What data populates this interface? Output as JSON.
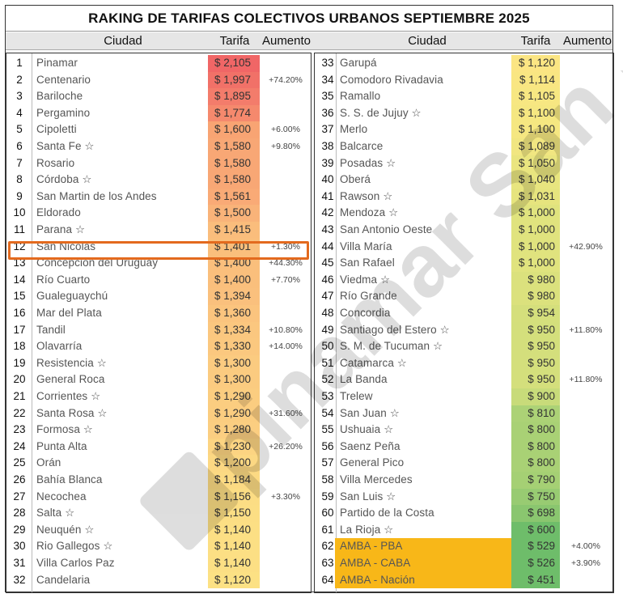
{
  "title": "RAKING DE TARIFAS COLECTIVOS URBANOS SEPTIEMBRE 2025",
  "headers": {
    "city": "Ciudad",
    "fare": "Tarifa",
    "increase": "Aumento"
  },
  "colors": {
    "highlight": "#e36a1e",
    "amba": "#f8b718",
    "high": "#f26b6b",
    "mid": "#fbd97a",
    "low": "#6fbf6c"
  },
  "watermark": {
    "text": "pinamar San Nicolas",
    "icon": "logo-icon"
  },
  "left_rows": [
    {
      "rank": "1",
      "city": "Pinamar",
      "fare": "$ 2,105",
      "inc": "",
      "c": "#f06666"
    },
    {
      "rank": "2",
      "city": "Centenario",
      "fare": "$ 1,997",
      "inc": "+74.20%",
      "c": "#f17168"
    },
    {
      "rank": "3",
      "city": "Bariloche",
      "fare": "$ 1,895",
      "inc": "",
      "c": "#f37c6b"
    },
    {
      "rank": "4",
      "city": "Pergamino",
      "fare": "$ 1,774",
      "inc": "",
      "c": "#f5896d"
    },
    {
      "rank": "5",
      "city": "Cipoletti",
      "fare": "$ 1,600",
      "inc": "+6.00%",
      "c": "#f8a473"
    },
    {
      "rank": "6",
      "city": "Santa Fe ☆",
      "fare": "$ 1,580",
      "inc": "+9.80%",
      "c": "#f8a775"
    },
    {
      "rank": "7",
      "city": "Rosario",
      "fare": "$ 1,580",
      "inc": "",
      "c": "#f8a775"
    },
    {
      "rank": "8",
      "city": "Córdoba ☆",
      "fare": "$ 1,580",
      "inc": "",
      "c": "#f8a775"
    },
    {
      "rank": "9",
      "city": "San Martin de los Andes",
      "fare": "$ 1,561",
      "inc": "",
      "c": "#f9aa76"
    },
    {
      "rank": "10",
      "city": "Eldorado",
      "fare": "$ 1,500",
      "inc": "",
      "c": "#f9b379"
    },
    {
      "rank": "11",
      "city": "Parana ☆",
      "fare": "$ 1,415",
      "inc": "",
      "c": "#fabd7c"
    },
    {
      "rank": "12",
      "city": "San Nicolas",
      "fare": "$ 1,401",
      "inc": "+1.30%",
      "c": "#fabf7c"
    },
    {
      "rank": "13",
      "city": "Concepción del Uruguay",
      "fare": "$ 1,400",
      "inc": "+44.30%",
      "c": "#fabf7c"
    },
    {
      "rank": "14",
      "city": "Río Cuarto",
      "fare": "$ 1,400",
      "inc": "+7.70%",
      "c": "#fabf7c"
    },
    {
      "rank": "15",
      "city": "Gualeguaychú",
      "fare": "$ 1,394",
      "inc": "",
      "c": "#fac07d"
    },
    {
      "rank": "16",
      "city": "Mar del Plata",
      "fare": "$ 1,360",
      "inc": "",
      "c": "#fbc47e"
    },
    {
      "rank": "17",
      "city": "Tandil",
      "fare": "$ 1,334",
      "inc": "+10.80%",
      "c": "#fbc77f"
    },
    {
      "rank": "18",
      "city": "Olavarría",
      "fare": "$ 1,330",
      "inc": "+14.00%",
      "c": "#fbc87f"
    },
    {
      "rank": "19",
      "city": "Resistencia ☆",
      "fare": "$ 1,300",
      "inc": "",
      "c": "#fbcb80"
    },
    {
      "rank": "20",
      "city": "General Roca",
      "fare": "$ 1,300",
      "inc": "",
      "c": "#fbcb80"
    },
    {
      "rank": "21",
      "city": "Corrientes ☆",
      "fare": "$ 1,290",
      "inc": "",
      "c": "#fbcd80"
    },
    {
      "rank": "22",
      "city": "Santa Rosa ☆",
      "fare": "$ 1,290",
      "inc": "+31.60%",
      "c": "#fbcd80"
    },
    {
      "rank": "23",
      "city": "Formosa ☆",
      "fare": "$ 1,280",
      "inc": "",
      "c": "#fbce81"
    },
    {
      "rank": "24",
      "city": "Punta Alta",
      "fare": "$ 1,230",
      "inc": "+26.20%",
      "c": "#fcd482"
    },
    {
      "rank": "25",
      "city": "Orán",
      "fare": "$ 1,200",
      "inc": "",
      "c": "#fcd883"
    },
    {
      "rank": "26",
      "city": "Bahía Blanca",
      "fare": "$ 1,184",
      "inc": "",
      "c": "#fcda83"
    },
    {
      "rank": "27",
      "city": "Necochea",
      "fare": "$ 1,156",
      "inc": "+3.30%",
      "c": "#fcdd84"
    },
    {
      "rank": "28",
      "city": "Salta ☆",
      "fare": "$ 1,150",
      "inc": "",
      "c": "#fcde84"
    },
    {
      "rank": "29",
      "city": "Neuquén ☆",
      "fare": "$ 1,140",
      "inc": "",
      "c": "#fcdf84"
    },
    {
      "rank": "30",
      "city": "Rio Gallegos ☆",
      "fare": "$ 1,140",
      "inc": "",
      "c": "#fcdf84"
    },
    {
      "rank": "31",
      "city": "Villa Carlos Paz",
      "fare": "$ 1,140",
      "inc": "",
      "c": "#fcdf84"
    },
    {
      "rank": "32",
      "city": "Candelaria",
      "fare": "$ 1,120",
      "inc": "",
      "c": "#fce184"
    }
  ],
  "right_rows": [
    {
      "rank": "33",
      "city": "Garupá",
      "fare": "$ 1,120",
      "inc": "",
      "c": "#fbe583",
      "amba": false
    },
    {
      "rank": "34",
      "city": "Comodoro Rivadavia",
      "fare": "$ 1,114",
      "inc": "",
      "c": "#f9e682",
      "amba": false
    },
    {
      "rank": "35",
      "city": "Ramallo",
      "fare": "$ 1,105",
      "inc": "",
      "c": "#f7e782",
      "amba": false
    },
    {
      "rank": "36",
      "city": "S. S. de Jujuy ☆",
      "fare": "$ 1,100",
      "inc": "",
      "c": "#f5e781",
      "amba": false
    },
    {
      "rank": "37",
      "city": "Merlo",
      "fare": "$ 1,100",
      "inc": "",
      "c": "#f5e781",
      "amba": false
    },
    {
      "rank": "38",
      "city": "Balcarce",
      "fare": "$ 1,089",
      "inc": "",
      "c": "#f1e681",
      "amba": false
    },
    {
      "rank": "39",
      "city": "Posadas ☆",
      "fare": "$ 1,050",
      "inc": "",
      "c": "#eae57f",
      "amba": false
    },
    {
      "rank": "40",
      "city": "Oberá",
      "fare": "$ 1,040",
      "inc": "",
      "c": "#e8e57f",
      "amba": false
    },
    {
      "rank": "41",
      "city": "Rawson ☆",
      "fare": "$ 1,031",
      "inc": "",
      "c": "#e6e47e",
      "amba": false
    },
    {
      "rank": "42",
      "city": "Mendoza ☆",
      "fare": "$ 1,000",
      "inc": "",
      "c": "#e0e37e",
      "amba": false
    },
    {
      "rank": "43",
      "city": "San Antonio Oeste",
      "fare": "$ 1,000",
      "inc": "",
      "c": "#e0e37e",
      "amba": false
    },
    {
      "rank": "44",
      "city": "Villa María",
      "fare": "$ 1,000",
      "inc": "+42.90%",
      "c": "#e0e37e",
      "amba": false
    },
    {
      "rank": "45",
      "city": "San Rafael",
      "fare": "$ 1,000",
      "inc": "",
      "c": "#e0e37e",
      "amba": false
    },
    {
      "rank": "46",
      "city": "Viedma ☆",
      "fare": "$ 980",
      "inc": "",
      "c": "#dbe17d",
      "amba": false
    },
    {
      "rank": "47",
      "city": "Río Grande",
      "fare": "$ 980",
      "inc": "",
      "c": "#dbe17d",
      "amba": false
    },
    {
      "rank": "48",
      "city": "Concordia",
      "fare": "$ 954",
      "inc": "",
      "c": "#d5df7c",
      "amba": false
    },
    {
      "rank": "49",
      "city": "Santiago del Estero ☆",
      "fare": "$ 950",
      "inc": "+11.80%",
      "c": "#d4df7c",
      "amba": false
    },
    {
      "rank": "50",
      "city": "S. M. de Tucuman ☆",
      "fare": "$ 950",
      "inc": "",
      "c": "#d4df7c",
      "amba": false
    },
    {
      "rank": "51",
      "city": "Catamarca ☆",
      "fare": "$ 950",
      "inc": "",
      "c": "#d4df7c",
      "amba": false
    },
    {
      "rank": "52",
      "city": "La Banda",
      "fare": "$ 950",
      "inc": "+11.80%",
      "c": "#d4df7c",
      "amba": false
    },
    {
      "rank": "53",
      "city": "Trelew",
      "fare": "$ 900",
      "inc": "",
      "c": "#c8db7a",
      "amba": false
    },
    {
      "rank": "54",
      "city": "San Juan ☆",
      "fare": "$ 810",
      "inc": "",
      "c": "#acd276",
      "amba": false
    },
    {
      "rank": "55",
      "city": "Ushuaia ☆",
      "fare": "$ 800",
      "inc": "",
      "c": "#a9d175",
      "amba": false
    },
    {
      "rank": "56",
      "city": "Saenz Peña",
      "fare": "$ 800",
      "inc": "",
      "c": "#a9d175",
      "amba": false
    },
    {
      "rank": "57",
      "city": "General Pico",
      "fare": "$ 800",
      "inc": "",
      "c": "#a9d175",
      "amba": false
    },
    {
      "rank": "58",
      "city": "Villa Mercedes",
      "fare": "$ 790",
      "inc": "",
      "c": "#a5d074",
      "amba": false
    },
    {
      "rank": "59",
      "city": "San Luis ☆",
      "fare": "$ 750",
      "inc": "",
      "c": "#98cb72",
      "amba": false
    },
    {
      "rank": "60",
      "city": "Partido de la Costa",
      "fare": "$ 698",
      "inc": "",
      "c": "#8ac66f",
      "amba": false
    },
    {
      "rank": "61",
      "city": "La Rioja ☆",
      "fare": "$ 600",
      "inc": "",
      "c": "#6ebd6a",
      "amba": false
    },
    {
      "rank": "62",
      "city": "AMBA - PBA",
      "fare": "$ 529",
      "inc": "+4.00%",
      "c": "#6ebd6a",
      "amba": true
    },
    {
      "rank": "63",
      "city": "AMBA - CABA",
      "fare": "$ 526",
      "inc": "+3.90%",
      "c": "#6ebd6a",
      "amba": true
    },
    {
      "rank": "64",
      "city": "AMBA - Nación",
      "fare": "$ 451",
      "inc": "",
      "c": "#6ebd6a",
      "amba": true
    }
  ]
}
